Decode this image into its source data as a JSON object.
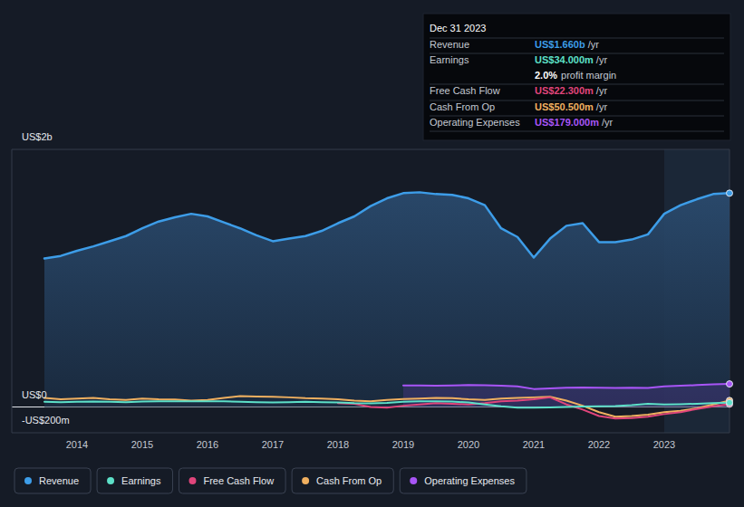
{
  "chart_data": {
    "type": "line",
    "x": [
      2013.5,
      2013.75,
      2014,
      2014.25,
      2014.5,
      2014.75,
      2015,
      2015.25,
      2015.5,
      2015.75,
      2016,
      2016.25,
      2016.5,
      2016.75,
      2017,
      2017.25,
      2017.5,
      2017.75,
      2018,
      2018.25,
      2018.5,
      2018.75,
      2019,
      2019.25,
      2019.5,
      2019.75,
      2020,
      2020.25,
      2020.5,
      2020.75,
      2021,
      2021.25,
      2021.5,
      2021.75,
      2022,
      2022.25,
      2022.5,
      2022.75,
      2023,
      2023.25,
      2023.5,
      2023.75,
      2024
    ],
    "xlim": [
      2013,
      2024
    ],
    "xticks": [
      2014,
      2015,
      2016,
      2017,
      2018,
      2019,
      2020,
      2021,
      2022,
      2023
    ],
    "ylim": [
      -200,
      2000
    ],
    "yticks": [
      {
        "value": 2000,
        "label": "US$2b"
      },
      {
        "value": 0,
        "label": "US$0"
      },
      {
        "value": -200,
        "label": "-US$200m"
      }
    ],
    "grid": true,
    "legend": "bottom",
    "series": [
      {
        "name": "Revenue",
        "color": "#3d9de8",
        "values": [
          1153,
          1173,
          1213,
          1247,
          1287,
          1327,
          1387,
          1440,
          1473,
          1500,
          1480,
          1433,
          1387,
          1333,
          1287,
          1307,
          1327,
          1367,
          1427,
          1480,
          1560,
          1620,
          1660,
          1667,
          1653,
          1647,
          1620,
          1567,
          1387,
          1320,
          1160,
          1307,
          1407,
          1427,
          1280,
          1280,
          1300,
          1340,
          1500,
          1567,
          1613,
          1653,
          1660
        ]
      },
      {
        "name": "Earnings",
        "color": "#5de0c8",
        "values": [
          40,
          38,
          40,
          42,
          40,
          38,
          42,
          44,
          45,
          44,
          45,
          44,
          40,
          38,
          35,
          38,
          40,
          38,
          35,
          30,
          28,
          32,
          40,
          45,
          45,
          42,
          35,
          20,
          5,
          -5,
          -5,
          -3,
          0,
          3,
          5,
          8,
          15,
          25,
          20,
          22,
          25,
          30,
          34
        ]
      },
      {
        "name": "Free Cash Flow",
        "color": "#e0457b",
        "values": [
          null,
          null,
          null,
          null,
          null,
          null,
          null,
          null,
          null,
          null,
          null,
          null,
          null,
          null,
          null,
          null,
          null,
          null,
          30,
          25,
          0,
          -5,
          10,
          20,
          30,
          25,
          20,
          30,
          45,
          50,
          60,
          75,
          20,
          -20,
          -70,
          -90,
          -85,
          -75,
          -55,
          -40,
          -15,
          5,
          22.3
        ]
      },
      {
        "name": "Cash From Op",
        "color": "#f0b060",
        "values": [
          70,
          60,
          65,
          70,
          60,
          55,
          65,
          60,
          58,
          50,
          55,
          70,
          85,
          82,
          80,
          75,
          68,
          65,
          60,
          50,
          45,
          55,
          62,
          65,
          70,
          68,
          60,
          55,
          65,
          70,
          75,
          80,
          50,
          10,
          -40,
          -75,
          -70,
          -60,
          -40,
          -30,
          -10,
          20,
          50.5
        ]
      },
      {
        "name": "Operating Expenses",
        "color": "#a855f7",
        "values": [
          null,
          null,
          null,
          null,
          null,
          null,
          null,
          null,
          null,
          null,
          null,
          null,
          null,
          null,
          null,
          null,
          null,
          null,
          null,
          null,
          null,
          null,
          167,
          168,
          166,
          168,
          170,
          169,
          165,
          160,
          140,
          145,
          150,
          152,
          150,
          148,
          150,
          148,
          160,
          165,
          170,
          176,
          179
        ]
      }
    ],
    "annotation": {
      "title": "Dec 31 2023",
      "rows": [
        {
          "label": "Revenue",
          "value": "US$1.660b",
          "unit": "/yr"
        },
        {
          "label": "Earnings",
          "value": "US$34.000m",
          "unit": "/yr"
        },
        {
          "label": "Free Cash Flow",
          "value": "US$22.300m",
          "unit": "/yr"
        },
        {
          "label": "Cash From Op",
          "value": "US$50.500m",
          "unit": "/yr"
        },
        {
          "label": "Operating Expenses",
          "value": "US$179.000m",
          "unit": "/yr"
        }
      ],
      "margin": {
        "value": "2.0%",
        "label": "profit margin"
      }
    }
  }
}
